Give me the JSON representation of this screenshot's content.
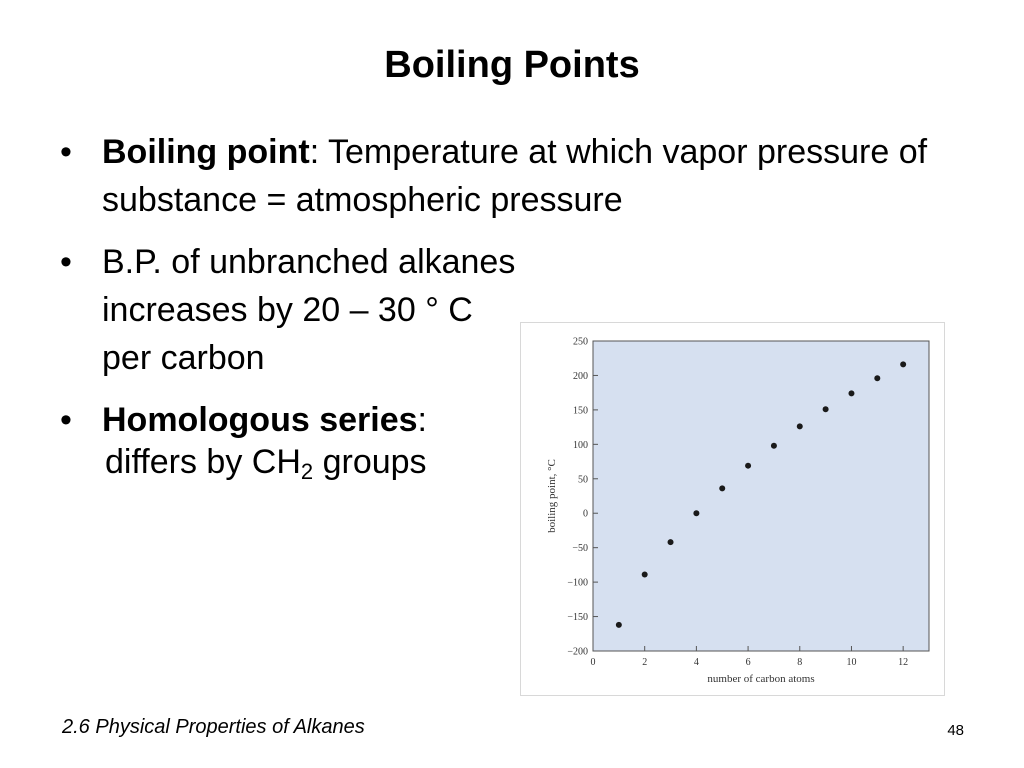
{
  "slide": {
    "title": "Boiling Points",
    "bullets": [
      {
        "bold": "Boiling point",
        "text": ": Temperature at which vapor pressure of substance = atmospheric pressure"
      },
      {
        "bold": "",
        "text": "B.P. of unbranched alkanes increases by 20 – 30 ° C per carbon"
      },
      {
        "bold": "Homologous series",
        "text": ":"
      }
    ],
    "sub_line": {
      "before": "differs by CH",
      "subscript": "2",
      "after": " groups"
    },
    "footer": "2.6 Physical Properties of Alkanes",
    "page_number": "48"
  },
  "chart_data": {
    "type": "scatter",
    "xlabel": "number of carbon atoms",
    "ylabel": "boiling point, °C",
    "xlim": [
      0,
      13
    ],
    "ylim": [
      -200,
      250
    ],
    "xticks": [
      0,
      2,
      4,
      6,
      8,
      10,
      12
    ],
    "yticks": [
      250,
      200,
      150,
      100,
      50,
      0,
      -50,
      -100,
      -150,
      -200
    ],
    "ytick_labels": [
      "250",
      "200",
      "150",
      "100",
      "50",
      "0",
      "−50",
      "−100",
      "−150",
      "−200"
    ],
    "grid": false,
    "background": "#d6e0f0",
    "point_color": "#1a1a1a",
    "x": [
      1,
      2,
      3,
      4,
      5,
      6,
      7,
      8,
      9,
      10,
      11,
      12
    ],
    "y": [
      -162,
      -89,
      -42,
      0,
      36,
      69,
      98,
      126,
      151,
      174,
      196,
      216
    ]
  }
}
